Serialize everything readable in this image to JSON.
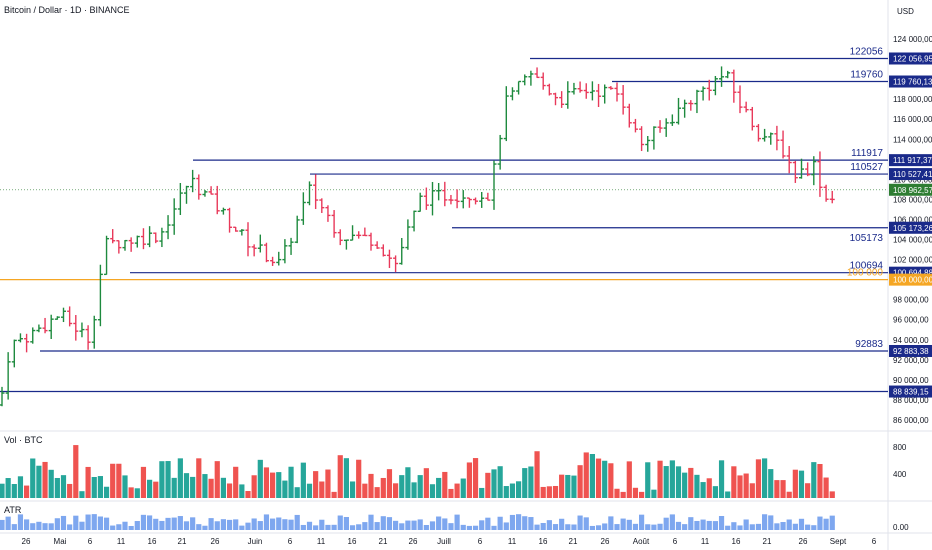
{
  "header": {
    "title": "Bitcoin / Dollar · 1D · BINANCE",
    "currency": "USD"
  },
  "panes": {
    "volume_label": "Vol · BTC",
    "atr_label": "ATR"
  },
  "colors": {
    "up": "#1e8a3e",
    "down": "#e8395a",
    "vol_up": "#26a69a",
    "vol_down": "#ef5350",
    "atr": "#7ea7ef",
    "level": "#1a2a8a",
    "round_level": "#f5a623",
    "price_tag": "#2e7d32"
  },
  "chart_data": {
    "type": "ohlc",
    "price_axis": {
      "ticks": [
        "124 000,00",
        "122 000,00",
        "120 000,00",
        "118 000,00",
        "116 000,00",
        "114 000,00",
        "112 000,00",
        "110 000,00",
        "108 000,00",
        "106 000,00",
        "104 000,00",
        "102 000,00",
        "100 000,00",
        "98 000,00",
        "96 000,00",
        "94 000,00",
        "92 000,00",
        "90 000,00",
        "88 000,00",
        "86 000,00"
      ]
    },
    "volume_axis": {
      "ticks": [
        "800",
        "400"
      ]
    },
    "atr_axis": {
      "ticks": [
        "0.00"
      ]
    },
    "time_axis": {
      "labels": [
        "26",
        "Mai",
        "6",
        "11",
        "16",
        "21",
        "26",
        "Juin",
        "6",
        "11",
        "16",
        "21",
        "26",
        "Juill",
        "6",
        "11",
        "16",
        "21",
        "26",
        "Août",
        "6",
        "11",
        "16",
        "21",
        "26",
        "Sept",
        "6"
      ]
    },
    "last_price": {
      "value": 108962.57,
      "label": "108 962,57"
    },
    "levels": [
      {
        "value": 122056,
        "label": "122056",
        "tag": "122 056,95",
        "style": "box"
      },
      {
        "value": 119760,
        "label": "119760",
        "tag": "119 760,13",
        "style": "box"
      },
      {
        "value": 111917,
        "label": "111917",
        "tag": "111 917,37",
        "style": "box"
      },
      {
        "value": 110527,
        "label": "110527",
        "tag": "110 527,41",
        "style": "box"
      },
      {
        "value": 105173,
        "label": "105173",
        "tag": "105 173,26",
        "style": "box"
      },
      {
        "value": 100694,
        "label": "100694",
        "tag": "100 694,88",
        "style": "box"
      },
      {
        "value": 100000,
        "label": "100 000",
        "tag": "100 000,00",
        "style": "round"
      },
      {
        "value": 92883,
        "label": "92883",
        "tag": "92 883,38",
        "style": "box"
      },
      {
        "value": 88839,
        "label": "",
        "tag": "88 839,15",
        "style": "box"
      }
    ]
  }
}
